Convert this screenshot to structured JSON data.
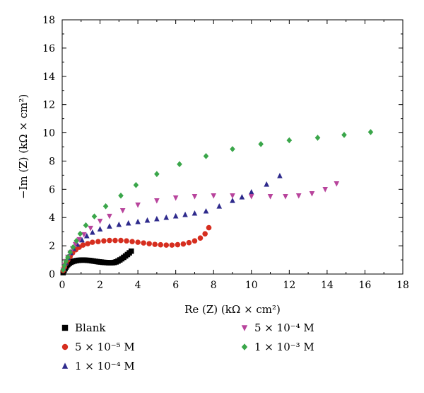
{
  "chart_data": {
    "type": "scatter",
    "xlabel": "Re (Z) (kΩ × cm²)",
    "ylabel": "−Im (Z) (kΩ × cm²)",
    "xlim": [
      0,
      18
    ],
    "ylim": [
      0,
      18
    ],
    "xticks": [
      "0",
      "2",
      "4",
      "6",
      "8",
      "10",
      "12",
      "14",
      "16",
      "18"
    ],
    "yticks": [
      "0",
      "2",
      "4",
      "6",
      "8",
      "10",
      "12",
      "14",
      "16",
      "18"
    ],
    "grid": false,
    "legend_position": "bottom",
    "series": [
      {
        "name": "Blank",
        "marker": "square",
        "color": "#000000",
        "points": [
          [
            0.05,
            0.1
          ],
          [
            0.1,
            0.25
          ],
          [
            0.15,
            0.38
          ],
          [
            0.2,
            0.5
          ],
          [
            0.25,
            0.6
          ],
          [
            0.3,
            0.68
          ],
          [
            0.38,
            0.76
          ],
          [
            0.46,
            0.83
          ],
          [
            0.55,
            0.88
          ],
          [
            0.65,
            0.92
          ],
          [
            0.75,
            0.95
          ],
          [
            0.85,
            0.97
          ],
          [
            0.95,
            0.98
          ],
          [
            1.05,
            0.99
          ],
          [
            1.15,
            0.99
          ],
          [
            1.25,
            0.98
          ],
          [
            1.35,
            0.97
          ],
          [
            1.45,
            0.96
          ],
          [
            1.55,
            0.94
          ],
          [
            1.65,
            0.92
          ],
          [
            1.75,
            0.9
          ],
          [
            1.85,
            0.88
          ],
          [
            1.95,
            0.86
          ],
          [
            2.05,
            0.85
          ],
          [
            2.15,
            0.83
          ],
          [
            2.25,
            0.82
          ],
          [
            2.35,
            0.81
          ],
          [
            2.45,
            0.8
          ],
          [
            2.55,
            0.8
          ],
          [
            2.65,
            0.8
          ],
          [
            2.75,
            0.82
          ],
          [
            2.85,
            0.86
          ],
          [
            2.95,
            0.92
          ],
          [
            3.05,
            1.0
          ],
          [
            3.15,
            1.08
          ],
          [
            3.25,
            1.18
          ],
          [
            3.35,
            1.28
          ],
          [
            3.45,
            1.38
          ],
          [
            3.55,
            1.5
          ],
          [
            3.65,
            1.62
          ]
        ]
      },
      {
        "name": "5 × 10⁻⁵ M",
        "marker": "circle",
        "color": "#d62e1f",
        "points": [
          [
            0.05,
            0.25
          ],
          [
            0.12,
            0.5
          ],
          [
            0.2,
            0.75
          ],
          [
            0.3,
            1.0
          ],
          [
            0.42,
            1.25
          ],
          [
            0.55,
            1.5
          ],
          [
            0.72,
            1.72
          ],
          [
            0.9,
            1.9
          ],
          [
            1.1,
            2.05
          ],
          [
            1.35,
            2.15
          ],
          [
            1.6,
            2.25
          ],
          [
            1.9,
            2.3
          ],
          [
            2.2,
            2.35
          ],
          [
            2.5,
            2.38
          ],
          [
            2.8,
            2.38
          ],
          [
            3.1,
            2.38
          ],
          [
            3.4,
            2.35
          ],
          [
            3.7,
            2.3
          ],
          [
            4.0,
            2.25
          ],
          [
            4.3,
            2.2
          ],
          [
            4.6,
            2.15
          ],
          [
            4.9,
            2.1
          ],
          [
            5.2,
            2.07
          ],
          [
            5.5,
            2.05
          ],
          [
            5.8,
            2.05
          ],
          [
            6.1,
            2.08
          ],
          [
            6.4,
            2.13
          ],
          [
            6.7,
            2.22
          ],
          [
            7.0,
            2.35
          ],
          [
            7.3,
            2.55
          ],
          [
            7.55,
            2.85
          ],
          [
            7.75,
            3.28
          ]
        ]
      },
      {
        "name": "1 × 10⁻⁴ M",
        "marker": "triangle-up",
        "color": "#2e2a8c",
        "points": [
          [
            0.08,
            0.4
          ],
          [
            0.18,
            0.8
          ],
          [
            0.3,
            1.15
          ],
          [
            0.45,
            1.5
          ],
          [
            0.6,
            1.8
          ],
          [
            0.8,
            2.1
          ],
          [
            1.05,
            2.4
          ],
          [
            1.3,
            2.7
          ],
          [
            1.6,
            2.95
          ],
          [
            2.0,
            3.18
          ],
          [
            2.5,
            3.38
          ],
          [
            3.0,
            3.5
          ],
          [
            3.5,
            3.6
          ],
          [
            4.0,
            3.7
          ],
          [
            4.5,
            3.8
          ],
          [
            5.0,
            3.9
          ],
          [
            5.5,
            4.0
          ],
          [
            6.0,
            4.1
          ],
          [
            6.5,
            4.2
          ],
          [
            7.0,
            4.3
          ],
          [
            7.6,
            4.45
          ],
          [
            8.3,
            4.8
          ],
          [
            9.0,
            5.2
          ],
          [
            9.5,
            5.45
          ],
          [
            10.0,
            5.8
          ],
          [
            10.8,
            6.35
          ],
          [
            11.5,
            6.95
          ]
        ]
      },
      {
        "name": "5 × 10⁻⁴ M",
        "marker": "triangle-down",
        "color": "#b8449c",
        "points": [
          [
            0.05,
            0.3
          ],
          [
            0.12,
            0.6
          ],
          [
            0.2,
            0.9
          ],
          [
            0.3,
            1.2
          ],
          [
            0.42,
            1.5
          ],
          [
            0.55,
            1.8
          ],
          [
            0.7,
            2.1
          ],
          [
            0.9,
            2.45
          ],
          [
            1.15,
            2.8
          ],
          [
            1.5,
            3.25
          ],
          [
            2.0,
            3.75
          ],
          [
            2.5,
            4.1
          ],
          [
            3.2,
            4.5
          ],
          [
            4.0,
            4.9
          ],
          [
            5.0,
            5.2
          ],
          [
            6.0,
            5.4
          ],
          [
            7.0,
            5.5
          ],
          [
            8.0,
            5.55
          ],
          [
            9.0,
            5.55
          ],
          [
            10.0,
            5.5
          ],
          [
            11.0,
            5.5
          ],
          [
            11.8,
            5.5
          ],
          [
            12.5,
            5.55
          ],
          [
            13.2,
            5.7
          ],
          [
            13.9,
            6.0
          ],
          [
            14.5,
            6.4
          ]
        ]
      },
      {
        "name": "1 × 10⁻³ M",
        "marker": "diamond",
        "color": "#3aa64a",
        "points": [
          [
            0.05,
            0.3
          ],
          [
            0.12,
            0.6
          ],
          [
            0.2,
            0.9
          ],
          [
            0.3,
            1.2
          ],
          [
            0.42,
            1.55
          ],
          [
            0.58,
            1.9
          ],
          [
            0.75,
            2.35
          ],
          [
            0.95,
            2.85
          ],
          [
            1.25,
            3.45
          ],
          [
            1.7,
            4.08
          ],
          [
            2.3,
            4.8
          ],
          [
            3.1,
            5.55
          ],
          [
            3.9,
            6.3
          ],
          [
            5.0,
            7.08
          ],
          [
            6.2,
            7.78
          ],
          [
            7.6,
            8.35
          ],
          [
            9.0,
            8.85
          ],
          [
            10.5,
            9.2
          ],
          [
            12.0,
            9.47
          ],
          [
            13.5,
            9.65
          ],
          [
            14.9,
            9.85
          ],
          [
            16.3,
            10.05
          ]
        ]
      }
    ]
  }
}
